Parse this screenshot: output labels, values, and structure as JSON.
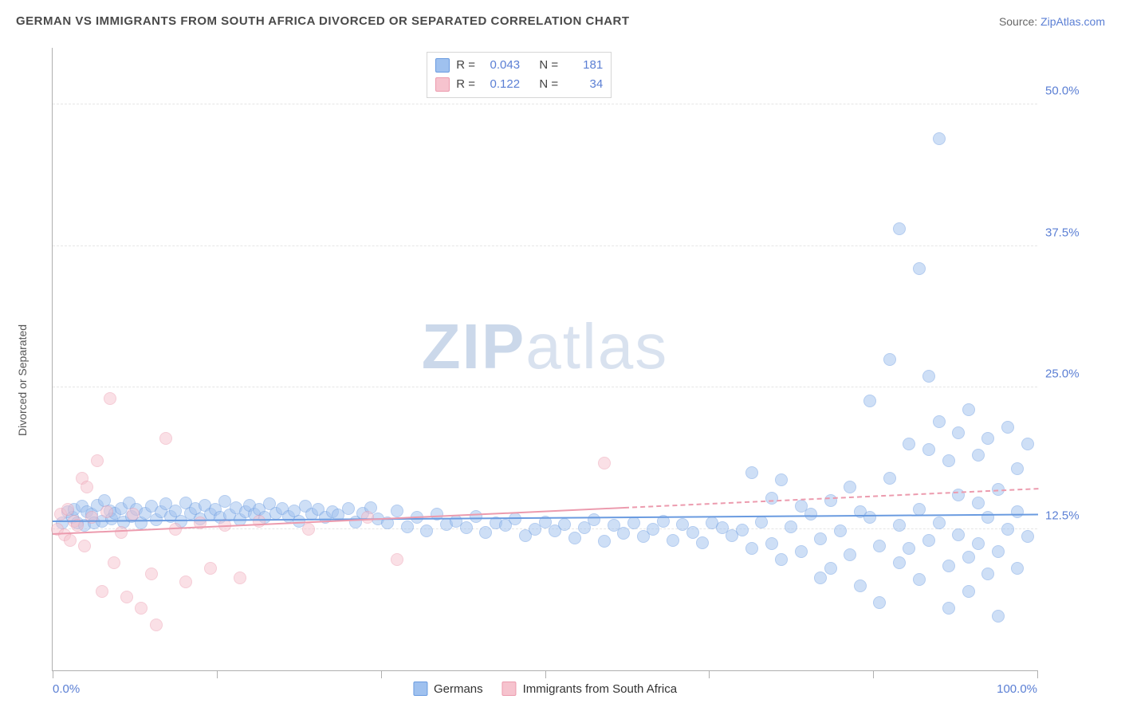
{
  "title": "GERMAN VS IMMIGRANTS FROM SOUTH AFRICA DIVORCED OR SEPARATED CORRELATION CHART",
  "source_label": "Source:",
  "source_link": "ZipAtlas.com",
  "ylabel": "Divorced or Separated",
  "watermark_a": "ZIP",
  "watermark_b": "atlas",
  "chart": {
    "type": "scatter",
    "xlim": [
      0,
      100
    ],
    "ylim": [
      0,
      55
    ],
    "yticks": [
      12.5,
      25.0,
      37.5,
      50.0
    ],
    "ytick_labels": [
      "12.5%",
      "25.0%",
      "37.5%",
      "50.0%"
    ],
    "xticks": [
      0,
      16.67,
      33.33,
      50,
      66.67,
      83.33,
      100
    ],
    "xlabels": {
      "0": "0.0%",
      "100": "100.0%"
    },
    "background_color": "#ffffff",
    "grid_color": "#e6e6e6",
    "axis_color": "#b0b0b0",
    "marker_radius": 8,
    "marker_opacity": 0.5,
    "series": [
      {
        "name": "Germans",
        "color": "#9fc1ef",
        "stroke": "#6a9be0",
        "R": "0.043",
        "N": "181",
        "trend": {
          "x0": 0,
          "y0": 13.3,
          "x1": 100,
          "y1": 13.9,
          "solid_to_x": 100
        },
        "points": [
          [
            1,
            13
          ],
          [
            1.5,
            14
          ],
          [
            2,
            13.5
          ],
          [
            2.2,
            14.2
          ],
          [
            2.5,
            13
          ],
          [
            3,
            14.5
          ],
          [
            3.2,
            12.8
          ],
          [
            3.5,
            14
          ],
          [
            4,
            13.8
          ],
          [
            4.2,
            13
          ],
          [
            4.5,
            14.6
          ],
          [
            5,
            13.2
          ],
          [
            5.3,
            15
          ],
          [
            5.8,
            14.1
          ],
          [
            6,
            13.4
          ],
          [
            6.3,
            13.9
          ],
          [
            7,
            14.3
          ],
          [
            7.2,
            13.1
          ],
          [
            7.8,
            14.8
          ],
          [
            8,
            13.6
          ],
          [
            8.5,
            14.2
          ],
          [
            9,
            13
          ],
          [
            9.4,
            13.9
          ],
          [
            10,
            14.5
          ],
          [
            10.5,
            13.3
          ],
          [
            11,
            14
          ],
          [
            11.5,
            14.7
          ],
          [
            12,
            13.6
          ],
          [
            12.5,
            14.1
          ],
          [
            13,
            13.2
          ],
          [
            13.5,
            14.8
          ],
          [
            14,
            13.9
          ],
          [
            14.5,
            14.3
          ],
          [
            15,
            13.4
          ],
          [
            15.5,
            14.6
          ],
          [
            16,
            13.8
          ],
          [
            16.5,
            14.2
          ],
          [
            17,
            13.5
          ],
          [
            17.5,
            14.9
          ],
          [
            18,
            13.7
          ],
          [
            18.6,
            14.4
          ],
          [
            19,
            13.3
          ],
          [
            19.6,
            14
          ],
          [
            20,
            14.6
          ],
          [
            20.5,
            13.8
          ],
          [
            21,
            14.2
          ],
          [
            21.5,
            13.5
          ],
          [
            22,
            14.7
          ],
          [
            22.7,
            13.9
          ],
          [
            23.3,
            14.3
          ],
          [
            24,
            13.6
          ],
          [
            24.5,
            14.1
          ],
          [
            25,
            13.2
          ],
          [
            25.7,
            14.5
          ],
          [
            26.3,
            13.8
          ],
          [
            27,
            14.2
          ],
          [
            27.7,
            13.5
          ],
          [
            28.4,
            14
          ],
          [
            29,
            13.7
          ],
          [
            30,
            14.3
          ],
          [
            30.8,
            13.1
          ],
          [
            31.5,
            13.9
          ],
          [
            32.3,
            14.4
          ],
          [
            33,
            13.4
          ],
          [
            34,
            13
          ],
          [
            35,
            14.1
          ],
          [
            36,
            12.7
          ],
          [
            37,
            13.5
          ],
          [
            38,
            12.3
          ],
          [
            39,
            13.8
          ],
          [
            40,
            12.9
          ],
          [
            41,
            13.2
          ],
          [
            42,
            12.6
          ],
          [
            43,
            13.6
          ],
          [
            44,
            12.2
          ],
          [
            45,
            13
          ],
          [
            46,
            12.8
          ],
          [
            47,
            13.4
          ],
          [
            48,
            11.9
          ],
          [
            49,
            12.5
          ],
          [
            50,
            13.1
          ],
          [
            51,
            12.3
          ],
          [
            52,
            12.9
          ],
          [
            53,
            11.7
          ],
          [
            54,
            12.6
          ],
          [
            55,
            13.3
          ],
          [
            56,
            11.4
          ],
          [
            57,
            12.8
          ],
          [
            58,
            12.1
          ],
          [
            59,
            13
          ],
          [
            60,
            11.8
          ],
          [
            61,
            12.5
          ],
          [
            62,
            13.2
          ],
          [
            63,
            11.5
          ],
          [
            64,
            12.9
          ],
          [
            65,
            12.2
          ],
          [
            66,
            11.3
          ],
          [
            67,
            13
          ],
          [
            68,
            12.6
          ],
          [
            69,
            11.9
          ],
          [
            70,
            12.4
          ],
          [
            71,
            17.5
          ],
          [
            71,
            10.8
          ],
          [
            72,
            13.1
          ],
          [
            73,
            15.2
          ],
          [
            73,
            11.2
          ],
          [
            74,
            16.8
          ],
          [
            74,
            9.8
          ],
          [
            75,
            12.7
          ],
          [
            76,
            14.5
          ],
          [
            76,
            10.5
          ],
          [
            77,
            13.8
          ],
          [
            78,
            11.6
          ],
          [
            78,
            8.2
          ],
          [
            79,
            15
          ],
          [
            79,
            9
          ],
          [
            80,
            12.3
          ],
          [
            81,
            16.2
          ],
          [
            81,
            10.2
          ],
          [
            82,
            14
          ],
          [
            82,
            7.5
          ],
          [
            83,
            13.5
          ],
          [
            83,
            23.8
          ],
          [
            84,
            11
          ],
          [
            84,
            6
          ],
          [
            85,
            17
          ],
          [
            85,
            27.5
          ],
          [
            86,
            12.8
          ],
          [
            86,
            9.5
          ],
          [
            86,
            39
          ],
          [
            87,
            20
          ],
          [
            87,
            10.8
          ],
          [
            88,
            14.2
          ],
          [
            88,
            8
          ],
          [
            88,
            35.5
          ],
          [
            89,
            19.5
          ],
          [
            89,
            11.5
          ],
          [
            89,
            26
          ],
          [
            90,
            13
          ],
          [
            90,
            47
          ],
          [
            90,
            22
          ],
          [
            91,
            18.5
          ],
          [
            91,
            9.2
          ],
          [
            91,
            5.5
          ],
          [
            92,
            15.5
          ],
          [
            92,
            21
          ],
          [
            92,
            12
          ],
          [
            93,
            10
          ],
          [
            93,
            23
          ],
          [
            93,
            7
          ],
          [
            94,
            14.8
          ],
          [
            94,
            19
          ],
          [
            94,
            11.2
          ],
          [
            95,
            13.5
          ],
          [
            95,
            8.5
          ],
          [
            95,
            20.5
          ],
          [
            96,
            16
          ],
          [
            96,
            10.5
          ],
          [
            96,
            4.8
          ],
          [
            97,
            12.5
          ],
          [
            97,
            21.5
          ],
          [
            98,
            14
          ],
          [
            98,
            9
          ],
          [
            98,
            17.8
          ],
          [
            99,
            11.8
          ],
          [
            99,
            20
          ]
        ]
      },
      {
        "name": "Immigrants from South Africa",
        "color": "#f6c3ce",
        "stroke": "#ec9bae",
        "R": "0.122",
        "N": "34",
        "trend": {
          "x0": 0,
          "y0": 12.2,
          "x1": 100,
          "y1": 16.2,
          "solid_to_x": 58
        },
        "points": [
          [
            0.5,
            12.5
          ],
          [
            0.8,
            13.8
          ],
          [
            1.2,
            12
          ],
          [
            1.5,
            14.2
          ],
          [
            1.8,
            11.5
          ],
          [
            2.2,
            13.2
          ],
          [
            2.5,
            12.8
          ],
          [
            3,
            17
          ],
          [
            3.2,
            11
          ],
          [
            3.5,
            16.2
          ],
          [
            4,
            13.5
          ],
          [
            4.5,
            18.5
          ],
          [
            5,
            7
          ],
          [
            5.5,
            14
          ],
          [
            5.8,
            24
          ],
          [
            6.2,
            9.5
          ],
          [
            7,
            12.2
          ],
          [
            7.5,
            6.5
          ],
          [
            8.2,
            13.8
          ],
          [
            9,
            5.5
          ],
          [
            10,
            8.5
          ],
          [
            10.5,
            4
          ],
          [
            11.5,
            20.5
          ],
          [
            12.5,
            12.5
          ],
          [
            13.5,
            7.8
          ],
          [
            15,
            13
          ],
          [
            16,
            9
          ],
          [
            17.5,
            12.8
          ],
          [
            19,
            8.2
          ],
          [
            21,
            13.2
          ],
          [
            26,
            12.5
          ],
          [
            32,
            13.5
          ],
          [
            35,
            9.8
          ],
          [
            56,
            18.3
          ]
        ]
      }
    ]
  },
  "legend": {
    "items": [
      "Germans",
      "Immigrants from South Africa"
    ]
  }
}
